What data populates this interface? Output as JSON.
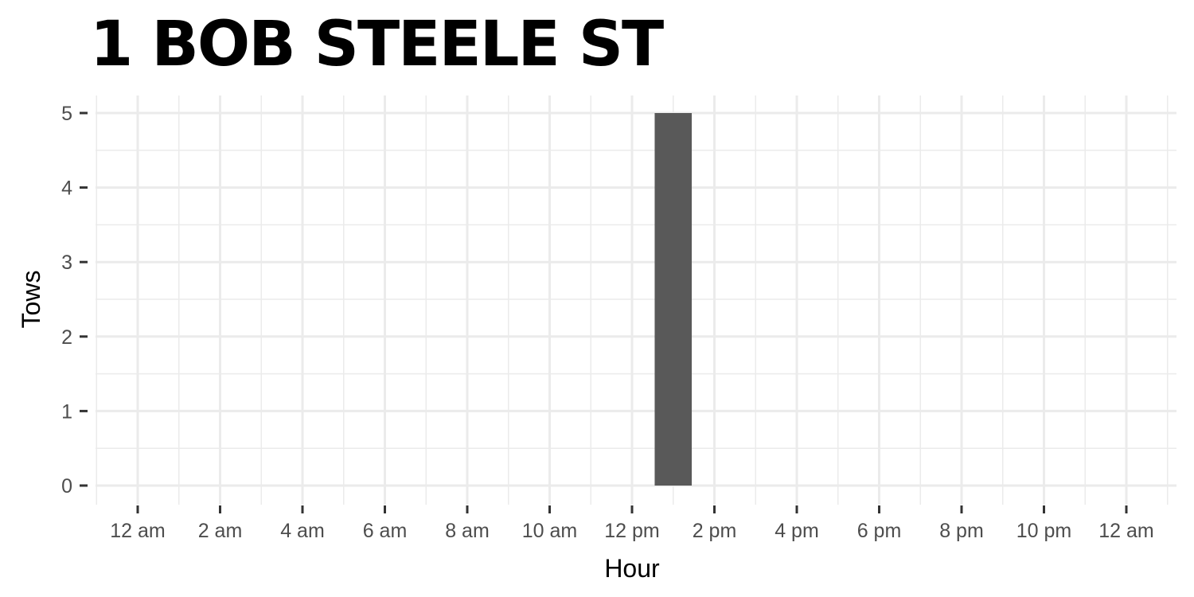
{
  "chart_data": {
    "type": "bar",
    "title": "1 BOB STEELE ST",
    "xlabel": "Hour",
    "ylabel": "Tows",
    "x_tick_labels": [
      "12 am",
      "2 am",
      "4 am",
      "6 am",
      "8 am",
      "10 am",
      "12 pm",
      "2 pm",
      "4 pm",
      "6 pm",
      "8 pm",
      "10 pm",
      "12 am"
    ],
    "y_ticks": [
      0,
      1,
      2,
      3,
      4,
      5
    ],
    "xlim": [
      0,
      24
    ],
    "ylim": [
      0,
      5
    ],
    "grid": true,
    "bar_color": "#595959",
    "bars": [
      {
        "hour": 13,
        "value": 5
      }
    ]
  }
}
